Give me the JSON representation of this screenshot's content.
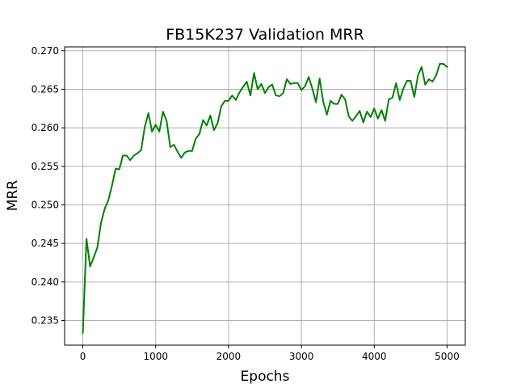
{
  "chart_data": {
    "type": "line",
    "title": "FB15K237 Validation MRR",
    "xlabel": "Epochs",
    "ylabel": "MRR",
    "xlim": [
      -250,
      5250
    ],
    "ylim": [
      0.2318,
      0.2705
    ],
    "xticks": [
      0,
      1000,
      2000,
      3000,
      4000,
      5000
    ],
    "yticks": [
      0.235,
      0.24,
      0.245,
      0.25,
      0.255,
      0.26,
      0.265,
      0.27
    ],
    "grid": true,
    "legend": "none",
    "series": [
      {
        "color": "#008000",
        "x": [
          0,
          50,
          100,
          150,
          200,
          250,
          300,
          350,
          400,
          450,
          500,
          550,
          600,
          650,
          700,
          750,
          800,
          850,
          900,
          950,
          1000,
          1050,
          1100,
          1150,
          1200,
          1250,
          1300,
          1350,
          1400,
          1450,
          1500,
          1550,
          1600,
          1650,
          1700,
          1750,
          1800,
          1850,
          1900,
          1950,
          2000,
          2050,
          2100,
          2150,
          2200,
          2250,
          2300,
          2350,
          2400,
          2450,
          2500,
          2550,
          2600,
          2650,
          2700,
          2750,
          2800,
          2850,
          2900,
          2950,
          3000,
          3050,
          3100,
          3150,
          3200,
          3250,
          3300,
          3350,
          3400,
          3450,
          3500,
          3550,
          3600,
          3650,
          3700,
          3750,
          3800,
          3850,
          3900,
          3950,
          4000,
          4050,
          4100,
          4150,
          4200,
          4250,
          4300,
          4350,
          4400,
          4450,
          4500,
          4550,
          4600,
          4650,
          4700,
          4750,
          4800,
          4850,
          4900,
          4950,
          5000
        ],
        "y": [
          0.2334,
          0.2456,
          0.242,
          0.2432,
          0.2445,
          0.2477,
          0.2495,
          0.2506,
          0.2525,
          0.2547,
          0.2546,
          0.2564,
          0.2564,
          0.2558,
          0.2564,
          0.2567,
          0.2571,
          0.2601,
          0.2619,
          0.2595,
          0.2604,
          0.2595,
          0.2621,
          0.2609,
          0.2575,
          0.2578,
          0.2569,
          0.2561,
          0.2568,
          0.257,
          0.257,
          0.2586,
          0.2592,
          0.261,
          0.2603,
          0.2616,
          0.2597,
          0.2606,
          0.2628,
          0.2635,
          0.2635,
          0.2642,
          0.2636,
          0.2646,
          0.2653,
          0.266,
          0.2642,
          0.2671,
          0.265,
          0.2657,
          0.2645,
          0.2653,
          0.2656,
          0.2642,
          0.2641,
          0.2645,
          0.2663,
          0.2657,
          0.2658,
          0.2658,
          0.2649,
          0.2654,
          0.2666,
          0.2651,
          0.2633,
          0.2664,
          0.2634,
          0.2617,
          0.2635,
          0.2631,
          0.2631,
          0.2643,
          0.2637,
          0.2615,
          0.2609,
          0.2615,
          0.2622,
          0.2607,
          0.2621,
          0.2614,
          0.2625,
          0.2612,
          0.2623,
          0.2609,
          0.2637,
          0.2639,
          0.2658,
          0.2636,
          0.2651,
          0.2661,
          0.2661,
          0.264,
          0.2668,
          0.2679,
          0.2656,
          0.2663,
          0.266,
          0.2668,
          0.2683,
          0.2683,
          0.2679
        ]
      }
    ]
  }
}
